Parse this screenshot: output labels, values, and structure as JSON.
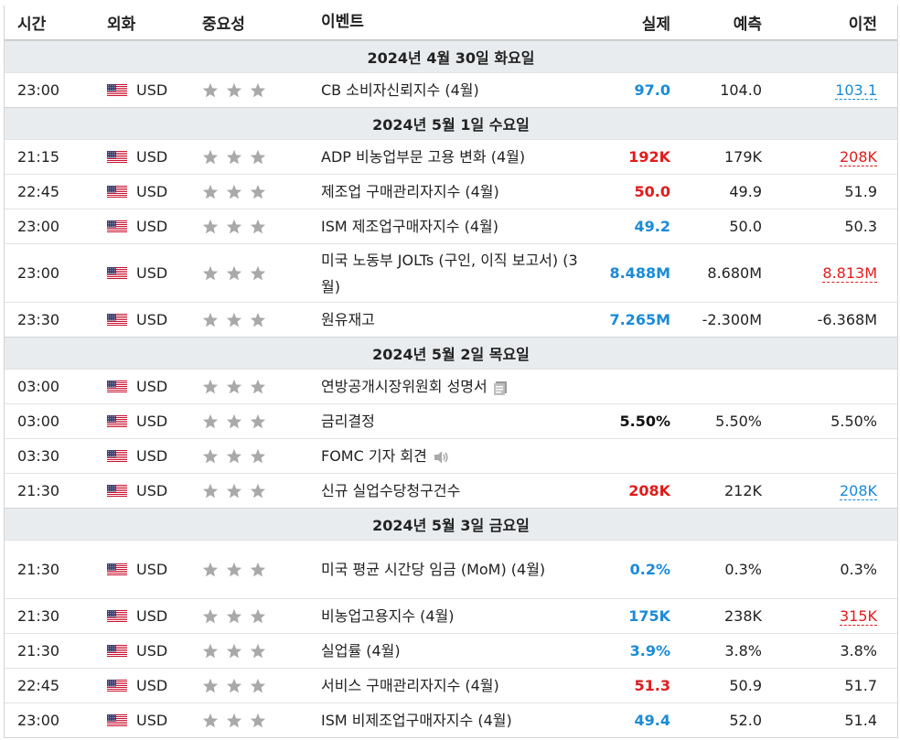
{
  "header": {
    "time": "시간",
    "currency": "외화",
    "importance": "중요성",
    "event": "이벤트",
    "actual": "실제",
    "forecast": "예측",
    "previous": "이전"
  },
  "colors": {
    "blue": "#1a8bd6",
    "red": "#e11b1b"
  },
  "days": [
    {
      "label": "2024년 4월 30일 화요일",
      "events": [
        {
          "time": "23:00",
          "currency": "USD",
          "event": "CB 소비자신뢰지수 (4월)",
          "actual": "97.0",
          "actual_color": "blue",
          "forecast": "104.0",
          "previous": "103.1",
          "previous_style": "blue-underline"
        }
      ]
    },
    {
      "label": "2024년 5월 1일 수요일",
      "events": [
        {
          "time": "21:15",
          "currency": "USD",
          "event": "ADP 비농업부문 고용 변화 (4월)",
          "actual": "192K",
          "actual_color": "red",
          "forecast": "179K",
          "previous": "208K",
          "previous_style": "red-underline"
        },
        {
          "time": "22:45",
          "currency": "USD",
          "event": "제조업 구매관리자지수 (4월)",
          "actual": "50.0",
          "actual_color": "red",
          "forecast": "49.9",
          "previous": "51.9",
          "previous_style": "plain"
        },
        {
          "time": "23:00",
          "currency": "USD",
          "event": "ISM 제조업구매자지수 (4월)",
          "actual": "49.2",
          "actual_color": "blue",
          "forecast": "50.0",
          "previous": "50.3",
          "previous_style": "plain"
        },
        {
          "time": "23:00",
          "currency": "USD",
          "event": "미국 노동부 JOLTs (구인, 이직 보고서) (3월)",
          "actual": "8.488M",
          "actual_color": "blue",
          "forecast": "8.680M",
          "previous": "8.813M",
          "previous_style": "red-underline",
          "tall": true
        },
        {
          "time": "23:30",
          "currency": "USD",
          "event": "원유재고",
          "actual": "7.265M",
          "actual_color": "blue",
          "forecast": "-2.300M",
          "previous": "-6.368M",
          "previous_style": "plain"
        }
      ]
    },
    {
      "label": "2024년 5월 2일 목요일",
      "events": [
        {
          "time": "03:00",
          "currency": "USD",
          "event": "연방공개시장위원회 성명서",
          "actual": "",
          "actual_color": "black",
          "forecast": "",
          "previous": "",
          "previous_style": "plain",
          "icon": "document-icon"
        },
        {
          "time": "03:00",
          "currency": "USD",
          "event": "금리결정",
          "actual": "5.50%",
          "actual_color": "black",
          "forecast": "5.50%",
          "previous": "5.50%",
          "previous_style": "plain"
        },
        {
          "time": "03:30",
          "currency": "USD",
          "event": "FOMC 기자 회견",
          "actual": "",
          "actual_color": "black",
          "forecast": "",
          "previous": "",
          "previous_style": "plain",
          "icon": "speaker-icon"
        },
        {
          "time": "21:30",
          "currency": "USD",
          "event": "신규 실업수당청구건수",
          "actual": "208K",
          "actual_color": "red",
          "forecast": "212K",
          "previous": "208K",
          "previous_style": "blue-underline"
        }
      ]
    },
    {
      "label": "2024년 5월 3일 금요일",
      "events": [
        {
          "time": "21:30",
          "currency": "USD",
          "event": "미국 평균 시간당 임금 (MoM) (4월)",
          "actual": "0.2%",
          "actual_color": "blue",
          "forecast": "0.3%",
          "previous": "0.3%",
          "previous_style": "plain",
          "tall": true
        },
        {
          "time": "21:30",
          "currency": "USD",
          "event": "비농업고용지수 (4월)",
          "actual": "175K",
          "actual_color": "blue",
          "forecast": "238K",
          "previous": "315K",
          "previous_style": "red-underline"
        },
        {
          "time": "21:30",
          "currency": "USD",
          "event": "실업률 (4월)",
          "actual": "3.9%",
          "actual_color": "blue",
          "forecast": "3.8%",
          "previous": "3.8%",
          "previous_style": "plain"
        },
        {
          "time": "22:45",
          "currency": "USD",
          "event": "서비스 구매관리자지수 (4월)",
          "actual": "51.3",
          "actual_color": "red",
          "forecast": "50.9",
          "previous": "51.7",
          "previous_style": "plain"
        },
        {
          "time": "23:00",
          "currency": "USD",
          "event": "ISM 비제조업구매자지수 (4월)",
          "actual": "49.4",
          "actual_color": "blue",
          "forecast": "52.0",
          "previous": "51.4",
          "previous_style": "plain"
        }
      ]
    }
  ]
}
